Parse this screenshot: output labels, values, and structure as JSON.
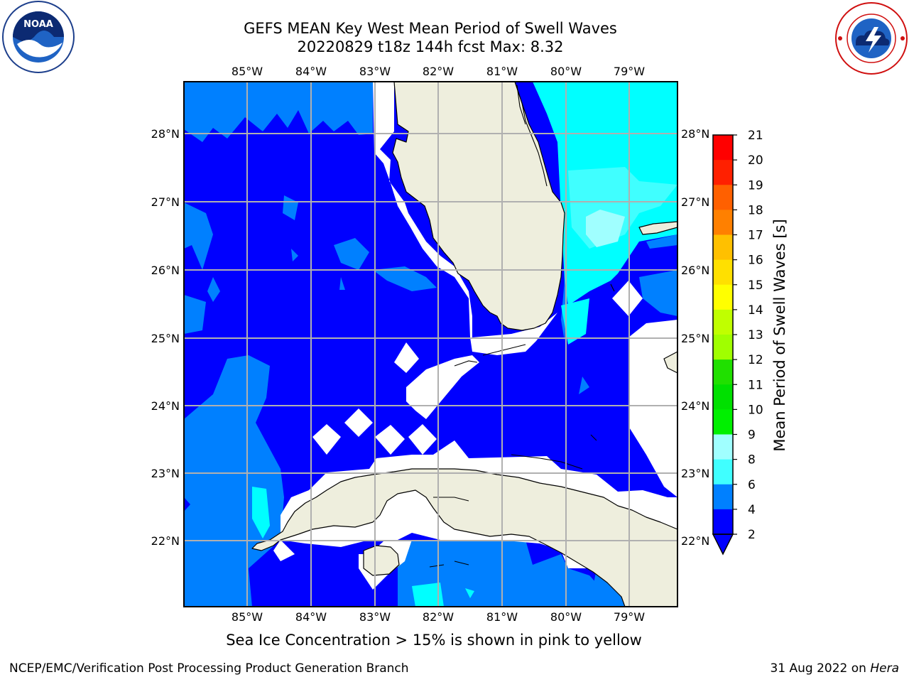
{
  "header": {
    "title_line1": "GEFS MEAN Key West Mean Period of Swell Waves",
    "title_line2": "20220829 t18z 144h fcst   Max: 8.32"
  },
  "logos": {
    "left": "noaa-logo",
    "right": "national-weather-service-logo"
  },
  "map": {
    "lon_labels_top": [
      "85°W",
      "84°W",
      "83°W",
      "82°W",
      "81°W",
      "80°W",
      "79°W"
    ],
    "lon_labels_bottom": [
      "85°W",
      "84°W",
      "83°W",
      "82°W",
      "81°W",
      "80°W",
      "79°W"
    ],
    "lat_labels_left": [
      "28°N",
      "27°N",
      "26°N",
      "25°N",
      "24°N",
      "23°N",
      "22°N"
    ],
    "lat_labels_right": [
      "28°N",
      "27°N",
      "26°N",
      "25°N",
      "24°N",
      "23°N",
      "22°N"
    ],
    "colors": {
      "ocean_2_4": "#0000ff",
      "ocean_4_6": "#0080ff",
      "ocean_6_7": "#00ffff",
      "ocean_7_8": "#40ffff",
      "ocean_8_9": "#a0ffff",
      "land": "#eeeedd",
      "no_data": "#ffffff",
      "grid": "#b0b0b0"
    }
  },
  "colorbar": {
    "label": "Mean Period of Swell Waves [s]",
    "ticks": [
      "21",
      "20",
      "19",
      "18",
      "17",
      "16",
      "15",
      "14",
      "13",
      "12",
      "11",
      "10",
      "9",
      "8",
      "6",
      "4",
      "2"
    ],
    "colors_top_to_bottom": [
      "#ff0000",
      "#ff2000",
      "#ff4000",
      "#ff6000",
      "#ff8000",
      "#ffa000",
      "#ffc000",
      "#ffe000",
      "#ffff00",
      "#e0ff00",
      "#c0ff00",
      "#a0ff00",
      "#60e000",
      "#20e000",
      "#00e000",
      "#00f000",
      "#40ff80",
      "#a0ffff",
      "#40ffff",
      "#00ffff",
      "#0080ff",
      "#0000ff"
    ]
  },
  "captions": {
    "ice": "Sea Ice Concentration > 15% is shown in pink to yellow"
  },
  "footer": {
    "left": "NCEP/EMC/Verification Post Processing Product Generation Branch",
    "right_date": "31 Aug 2022 on ",
    "right_system": "Hera"
  }
}
